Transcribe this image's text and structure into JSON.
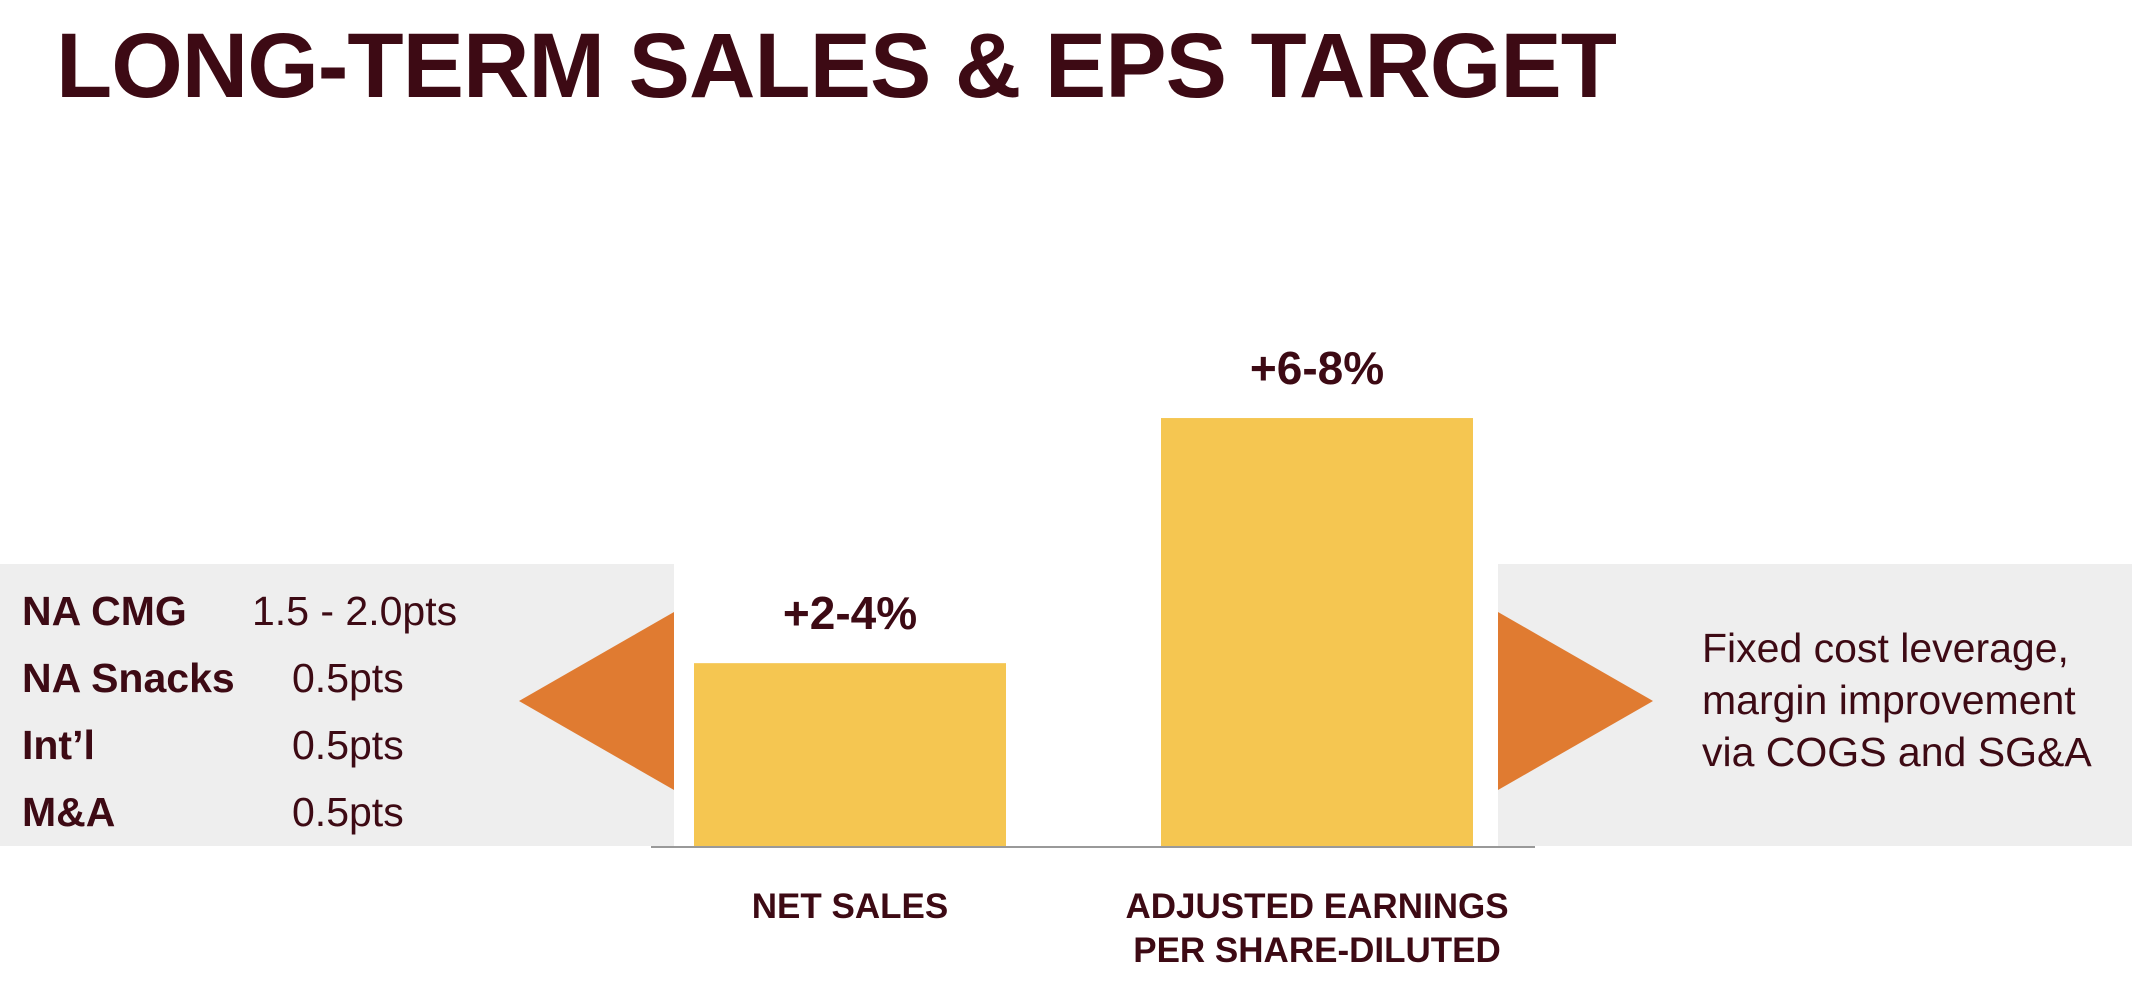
{
  "title": "LONG-TERM SALES & EPS TARGET",
  "colors": {
    "text": "#3d0a14",
    "bar": "#f5c651",
    "arrow": "#e07b31",
    "band": "#eeeeee",
    "axis": "#999999"
  },
  "drivers": [
    {
      "name": "NA CMG",
      "value": "1.5 - 2.0pts"
    },
    {
      "name": "NA Snacks",
      "value": "0.5pts"
    },
    {
      "name": "Int’l",
      "value": "0.5pts"
    },
    {
      "name": "M&A",
      "value": "0.5pts"
    }
  ],
  "right_note": [
    "Fixed cost leverage,",
    "margin improvement",
    "via COGS and SG&A"
  ],
  "chart_data": {
    "type": "bar",
    "categories": [
      "NET SALES",
      "ADJUSTED EARNINGS PER SHARE-DILUTED"
    ],
    "category_lines": [
      [
        "NET SALES"
      ],
      [
        "ADJUSTED EARNINGS",
        "PER SHARE-DILUTED"
      ]
    ],
    "data_labels": [
      "+2-4%",
      "+6-8%"
    ],
    "values": [
      3,
      7
    ],
    "ylim": [
      0,
      8.6
    ],
    "grid": false,
    "legend": "none"
  }
}
